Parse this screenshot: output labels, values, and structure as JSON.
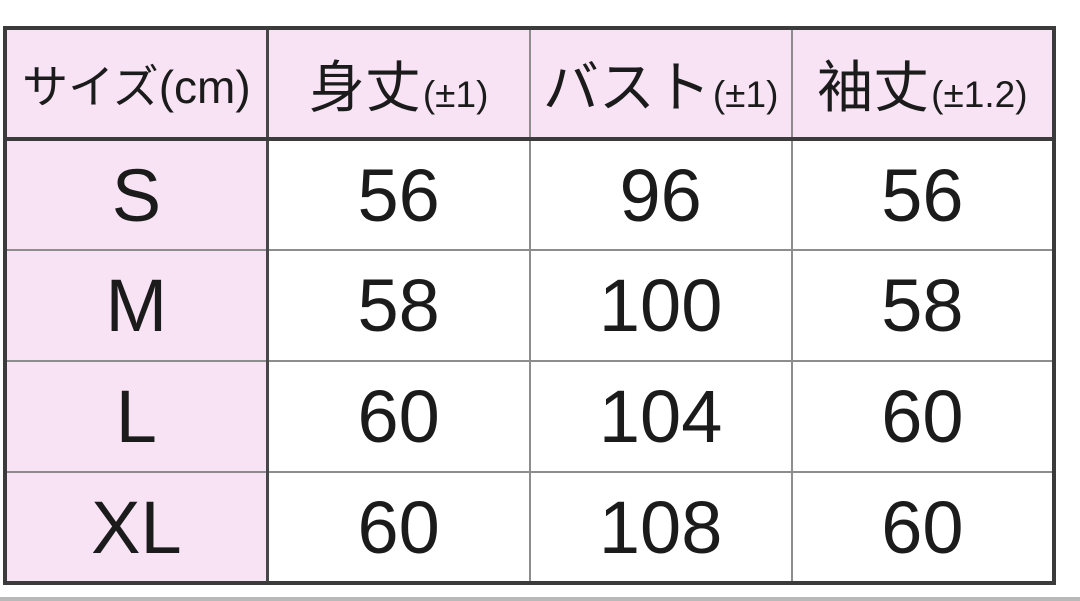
{
  "colors": {
    "header_bg": "#f7e3f4",
    "outer_border": "#3b3b3b",
    "grid_line": "#8d8d8d",
    "text": "#1b1b1b",
    "bottom_bar": "#b9b9b9"
  },
  "size_chart": {
    "headers": [
      {
        "main": "サイズ(cm)",
        "suffix": ""
      },
      {
        "main": "身丈",
        "suffix": "(±1)"
      },
      {
        "main": "バスト",
        "suffix": "(±1)"
      },
      {
        "main": "袖丈",
        "suffix": "(±1.2)"
      }
    ],
    "rows": [
      {
        "size": "S",
        "body_length": "56",
        "bust": "96",
        "sleeve_length": "56"
      },
      {
        "size": "M",
        "body_length": "58",
        "bust": "100",
        "sleeve_length": "58"
      },
      {
        "size": "L",
        "body_length": "60",
        "bust": "104",
        "sleeve_length": "60"
      },
      {
        "size": "XL",
        "body_length": "60",
        "bust": "108",
        "sleeve_length": "60"
      }
    ]
  },
  "chart_data": {
    "type": "table",
    "columns": [
      "サイズ(cm)",
      "身丈(±1)",
      "バスト(±1)",
      "袖丈(±1.2)"
    ],
    "rows": [
      [
        "S",
        56,
        96,
        56
      ],
      [
        "M",
        58,
        100,
        58
      ],
      [
        "L",
        60,
        104,
        60
      ],
      [
        "XL",
        60,
        108,
        60
      ]
    ]
  }
}
